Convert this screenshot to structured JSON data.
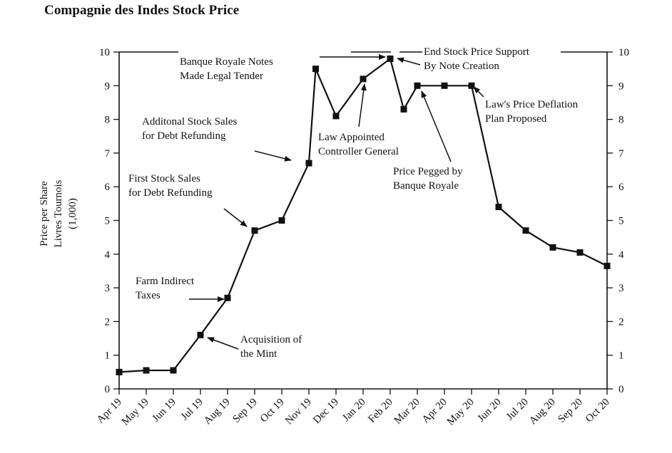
{
  "chart_data": {
    "type": "line",
    "title": "Compagnie des Indes Stock Price",
    "ylabel": [
      "Price per Share",
      "Livres Tournois",
      "(1,000)"
    ],
    "xlabel": "",
    "ylim": [
      0,
      10
    ],
    "yticks": [
      0,
      1,
      2,
      3,
      4,
      5,
      6,
      7,
      8,
      9,
      10
    ],
    "categories": [
      "Apr 19",
      "May 19",
      "Jun 19",
      "Jul 19",
      "Aug 19",
      "Sep 19",
      "Oct 19",
      "Nov 19",
      "Dec 19",
      "Jan 20",
      "Feb 20",
      "Mar 20",
      "Apr 20",
      "May 20",
      "Jun 20",
      "Jul 20",
      "Aug 20",
      "Sep 20",
      "Oct 20"
    ],
    "points": [
      {
        "x": 0,
        "y": 0.5
      },
      {
        "x": 1,
        "y": 0.55
      },
      {
        "x": 2,
        "y": 0.55
      },
      {
        "x": 3,
        "y": 1.6
      },
      {
        "x": 4,
        "y": 2.7
      },
      {
        "x": 5,
        "y": 4.7
      },
      {
        "x": 6,
        "y": 5.0
      },
      {
        "x": 7,
        "y": 6.7
      },
      {
        "x": 7.25,
        "y": 9.5
      },
      {
        "x": 8,
        "y": 8.1
      },
      {
        "x": 9,
        "y": 9.2
      },
      {
        "x": 10,
        "y": 9.8
      },
      {
        "x": 10.5,
        "y": 8.3
      },
      {
        "x": 11,
        "y": 9.0
      },
      {
        "x": 12,
        "y": 9.0
      },
      {
        "x": 13,
        "y": 9.0
      },
      {
        "x": 14,
        "y": 5.4
      },
      {
        "x": 15,
        "y": 4.7
      },
      {
        "x": 16,
        "y": 4.2
      },
      {
        "x": 17,
        "y": 4.05
      },
      {
        "x": 18,
        "y": 3.65
      }
    ],
    "annotations": [
      {
        "lines": [
          "Farm Indirect",
          "Taxes"
        ]
      },
      {
        "lines": [
          "Acquisition of",
          "the Mint"
        ]
      },
      {
        "lines": [
          "First Stock Sales",
          "for Debt Refunding"
        ]
      },
      {
        "lines": [
          "Additonal Stock Sales",
          "for Debt Refunding"
        ]
      },
      {
        "lines": [
          "Banque Royale Notes",
          "Made Legal Tender"
        ]
      },
      {
        "lines": [
          "Law Appointed",
          "Controller General"
        ]
      },
      {
        "lines": [
          "End Stock Price Support",
          "By Note Creation"
        ]
      },
      {
        "lines": [
          "Price Pegged by",
          "Banque Royale"
        ]
      },
      {
        "lines": [
          "Law's Price Deflation",
          "Plan Proposed"
        ]
      }
    ]
  }
}
